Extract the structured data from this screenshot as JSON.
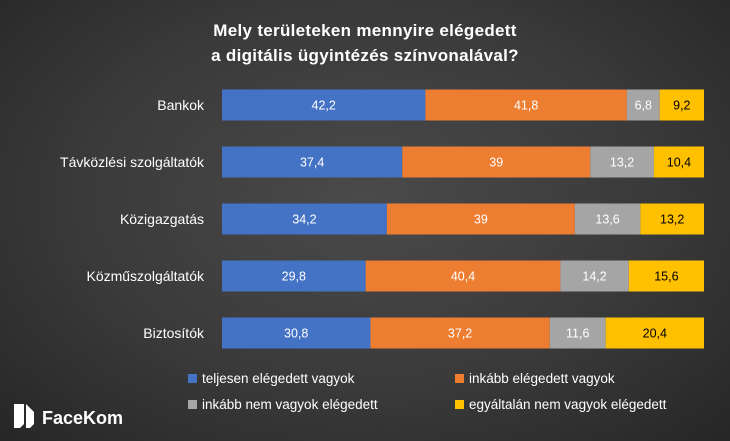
{
  "chart_data": {
    "type": "bar",
    "orientation": "horizontal",
    "stacked": true,
    "title_lines": [
      "Mely területeken mennyire elégedett",
      "a digitális ügyintézés színvonalával?"
    ],
    "categories": [
      "Bankok",
      "Távközlési szolgáltatók",
      "Közigazgatás",
      "Közműszolgáltatók",
      "Biztosítók"
    ],
    "series": [
      {
        "name": "teljesen elégedett vagyok",
        "color": "#4472c4",
        "label_color": "#ffffff",
        "values": [
          42.2,
          37.4,
          34.2,
          29.8,
          30.8
        ],
        "labels": [
          "42,2",
          "37,4",
          "34,2",
          "29,8",
          "30,8"
        ]
      },
      {
        "name": "inkább elégedett vagyok",
        "color": "#ed7d31",
        "label_color": "#ffffff",
        "values": [
          41.8,
          39,
          39,
          40.4,
          37.2
        ],
        "labels": [
          "41,8",
          "39",
          "39",
          "40,4",
          "37,2"
        ]
      },
      {
        "name": "inkább nem vagyok elégedett",
        "color": "#a5a5a5",
        "label_color": "#ffffff",
        "values": [
          6.8,
          13.2,
          13.6,
          14.2,
          11.6
        ],
        "labels": [
          "6,8",
          "13,2",
          "13,6",
          "14,2",
          "11,6"
        ]
      },
      {
        "name": "egyáltalán nem vagyok elégedett",
        "color": "#ffc000",
        "label_color": "#000000",
        "values": [
          9.2,
          10.4,
          13.2,
          15.6,
          20.4
        ],
        "labels": [
          "9,2",
          "10,4",
          "13,2",
          "15,6",
          "20,4"
        ]
      }
    ],
    "xlim": [
      0,
      100
    ],
    "grid": false,
    "legend_position": "bottom"
  },
  "brand": {
    "name": "FaceKom",
    "icon": "facekom-logo-icon"
  }
}
